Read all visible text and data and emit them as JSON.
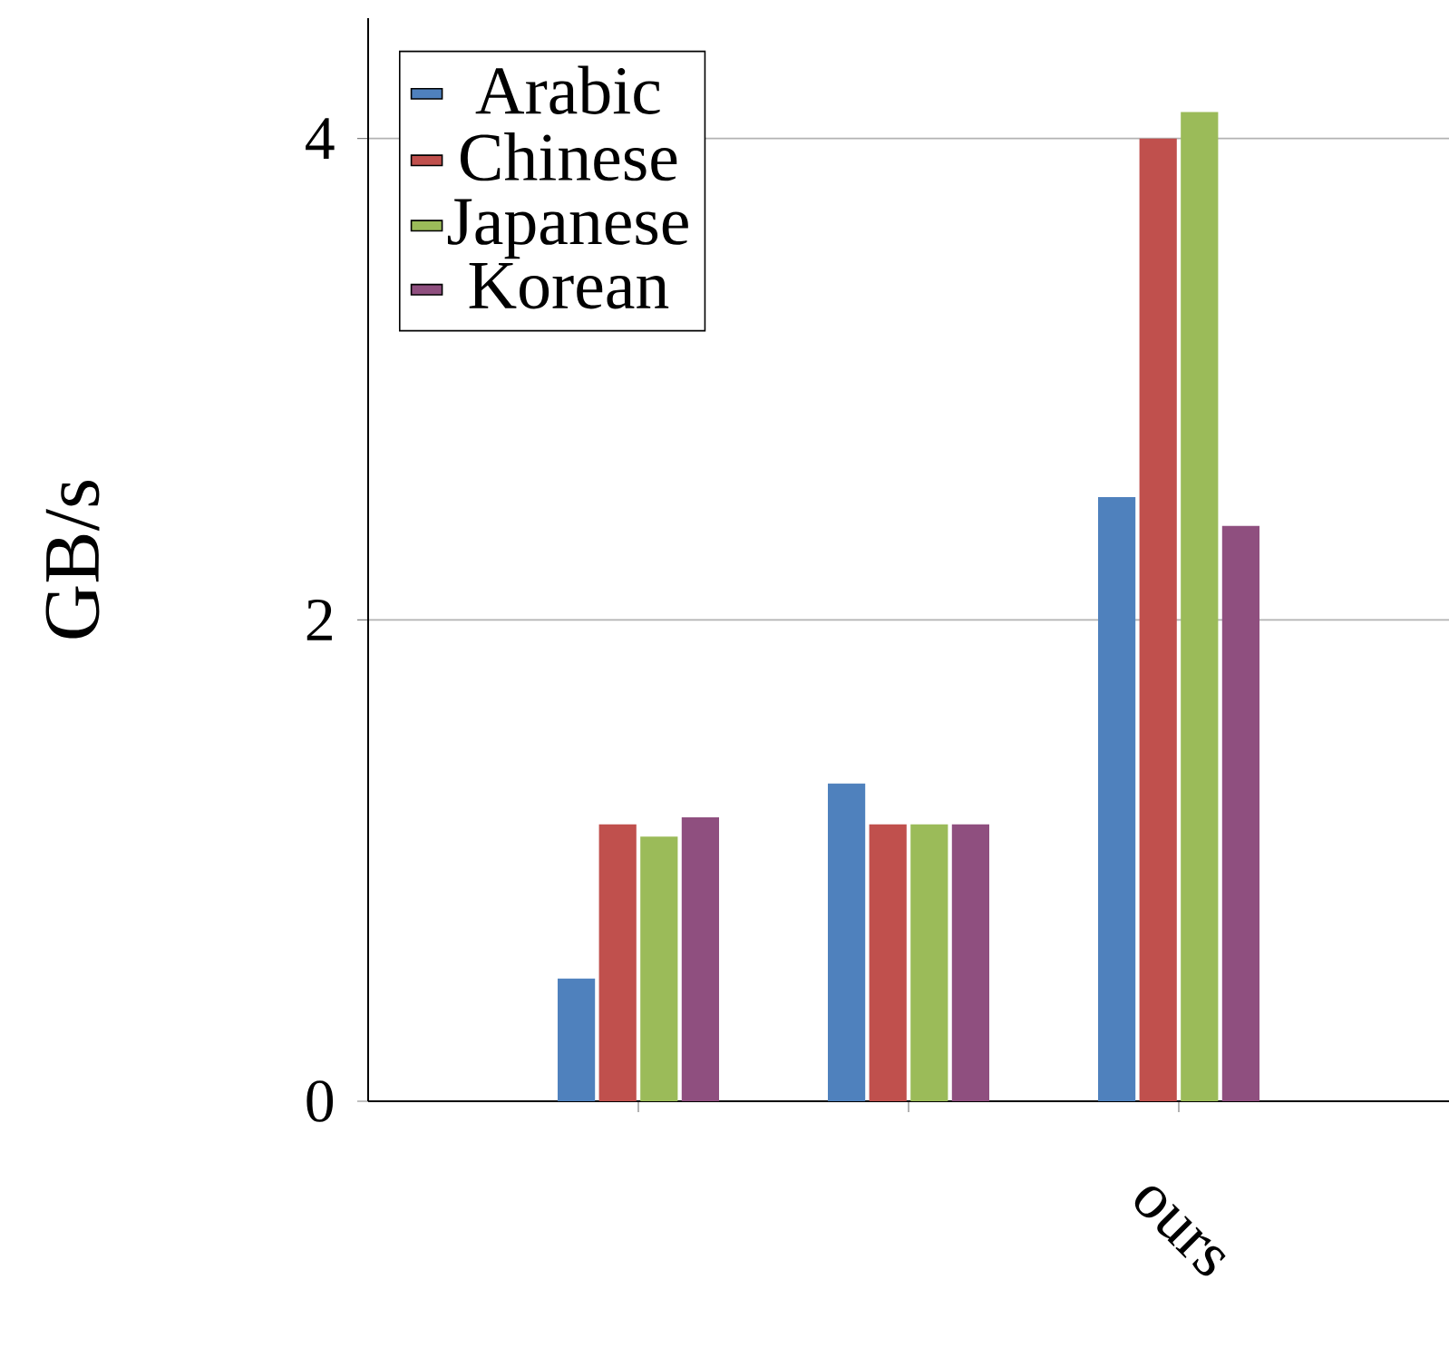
{
  "chart_data": {
    "type": "bar",
    "ylabel": "GB/s",
    "categories": [
      null,
      null,
      "ours"
    ],
    "series": [
      {
        "name": "Arabic",
        "color": "#4f81bd",
        "values": [
          0.51,
          1.32,
          2.51
        ]
      },
      {
        "name": "Chinese",
        "color": "#c0504d",
        "values": [
          1.15,
          1.15,
          4.0
        ]
      },
      {
        "name": "Japanese",
        "color": "#9bbb59",
        "values": [
          1.1,
          1.15,
          4.11
        ]
      },
      {
        "name": "Korean",
        "color": "#8f4f7f",
        "values": [
          1.18,
          1.15,
          2.39
        ]
      }
    ],
    "ylim": [
      0,
      4.5
    ],
    "yticks": [
      0,
      2,
      4
    ],
    "grid": "y",
    "legend": "top left"
  }
}
